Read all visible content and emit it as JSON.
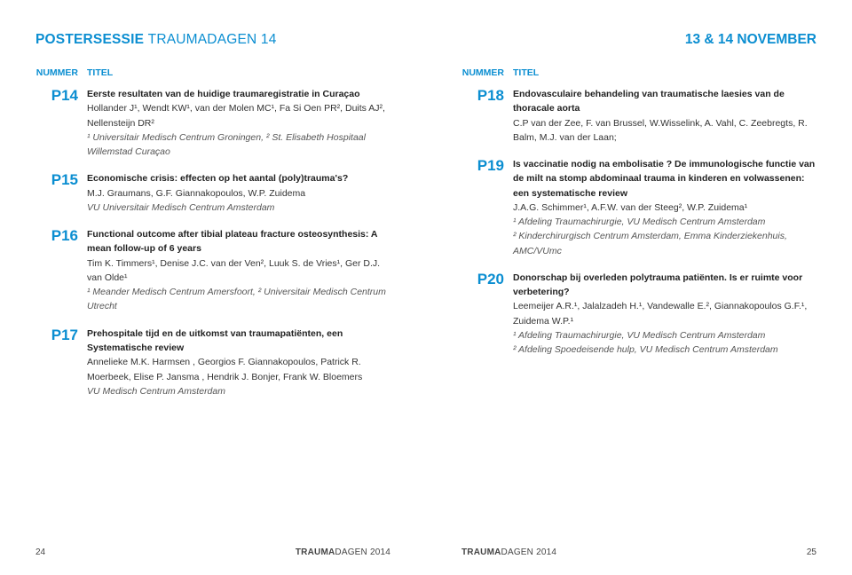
{
  "colors": {
    "accent": "#0b8ed1",
    "text": "#333333",
    "affil": "#555555"
  },
  "header": {
    "sessionPrefix": "POSTERSESSIE",
    "sessionSuffix": "TRAUMADAGEN 14",
    "date": "13 & 14 NOVEMBER"
  },
  "labels": {
    "nummer": "NUMMER",
    "titel": "TITEL"
  },
  "left": [
    {
      "num": "P14",
      "title": "Eerste resultaten van de huidige traumaregistratie in Curaçao",
      "authors": "Hollander J¹, Wendt KW¹, van der Molen MC¹, Fa Si Oen PR², Duits AJ², Nellensteijn DR²",
      "affil": "¹ Universitair Medisch Centrum Groningen, ² St. Elisabeth Hospitaal Willemstad Curaçao"
    },
    {
      "num": "P15",
      "title": "Economische crisis: effecten op het aantal (poly)trauma's?",
      "authors": "M.J. Graumans, G.F. Giannakopoulos, W.P. Zuidema",
      "affil": "VU Universitair Medisch Centrum Amsterdam"
    },
    {
      "num": "P16",
      "title": "Functional outcome after tibial plateau fracture osteosynthesis: A mean follow-up of 6 years",
      "authors": "Tim K. Timmers¹, Denise J.C. van der Ven², Luuk S. de Vries¹, Ger D.J. van Olde¹",
      "affil": "¹ Meander Medisch Centrum Amersfoort, ² Universitair Medisch Centrum Utrecht"
    },
    {
      "num": "P17",
      "title": "Prehospitale tijd en de uitkomst van traumapatiënten, een Systematische review",
      "authors": "Annelieke M.K. Harmsen , Georgios F. Giannakopoulos, Patrick R. Moerbeek, Elise P. Jansma , Hendrik J. Bonjer, Frank W. Bloemers",
      "affil": "VU Medisch Centrum Amsterdam"
    }
  ],
  "right": [
    {
      "num": "P18",
      "title": "Endovasculaire behandeling van traumatische laesies van de thoracale aorta",
      "authors": "C.P van der Zee, F. van Brussel, W.Wisselink, A. Vahl, C. Zeebregts, R. Balm, M.J. van der Laan;",
      "affil": ""
    },
    {
      "num": "P19",
      "title": "Is vaccinatie nodig na embolisatie ? De immunologische functie van de milt na stomp abdominaal trauma in kinderen en volwassenen: een systematische review",
      "authors": "J.A.G. Schimmer¹, A.F.W. van der Steeg², W.P. Zuidema¹",
      "affil": "¹ Afdeling Traumachirurgie, VU Medisch Centrum Amsterdam\n² Kinderchirurgisch Centrum Amsterdam, Emma Kinderziekenhuis, AMC/VUmc"
    },
    {
      "num": "P20",
      "title": "Donorschap bij overleden polytrauma patiënten. Is er ruimte voor verbetering?",
      "authors": "Leemeijer A.R.¹, Jalalzadeh H.¹, Vandewalle E.², Giannakopoulos G.F.¹, Zuidema W.P.¹",
      "affil": "¹ Afdeling Traumachirurgie, VU Medisch Centrum Amsterdam\n² Afdeling Spoedeisende hulp, VU Medisch Centrum Amsterdam"
    }
  ],
  "footer": {
    "brandBold": "TRAUMA",
    "brandRest": "DAGEN 2014",
    "pageLeft": "24",
    "pageRight": "25"
  }
}
